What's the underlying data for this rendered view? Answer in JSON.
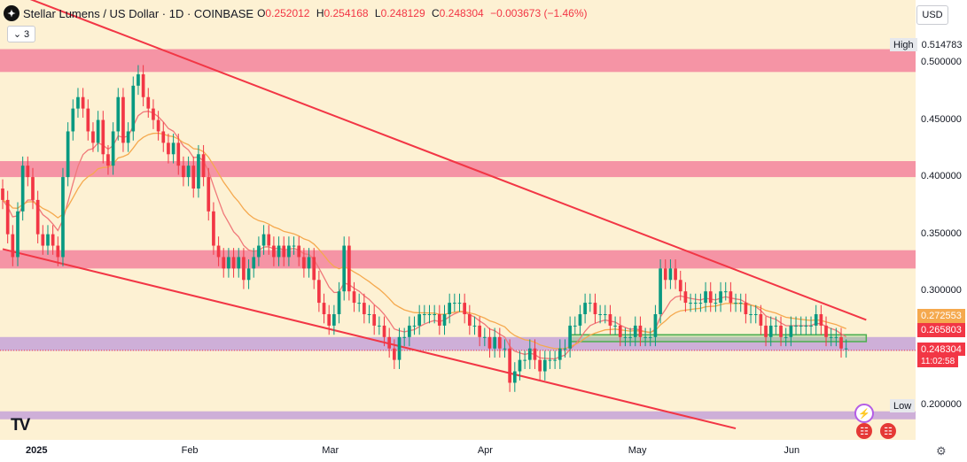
{
  "header": {
    "logo_glyph": "✦",
    "title": "Stellar Lumens / US Dollar · 1D · COINBASE",
    "ohlc": [
      {
        "label": "O",
        "value": "0.252012"
      },
      {
        "label": "H",
        "value": "0.254168"
      },
      {
        "label": "L",
        "value": "0.248129"
      },
      {
        "label": "C",
        "value": "0.248304"
      },
      {
        "label": "",
        "value": "−0.003673 (−1.46%)"
      }
    ]
  },
  "indicator_toggle": {
    "chevron": "⌄",
    "count": "3"
  },
  "currency_button": "USD",
  "watermark": "TV",
  "price_axis": {
    "high_label": "High",
    "high_value": "0.514783",
    "low_label": "Low",
    "low_value": "0.200000",
    "ema_slow_tag": "0.272553",
    "ema_fast_tag": "0.265803",
    "last_price_tag": "0.248304",
    "countdown": "11:02:58"
  },
  "colors": {
    "background": "#fdf1d3",
    "up_candle": "#089981",
    "down_candle": "#f23645",
    "resistance_zone": "#f48aa0",
    "support_zone": "#c9a7d8",
    "trendline": "#f23645",
    "ema_fast": "#f0787a",
    "ema_slow": "#f5a94e",
    "box_border": "#4caf50"
  },
  "chart_data": {
    "type": "candlestick",
    "symbol": "Stellar Lumens / US Dollar",
    "interval": "1D",
    "exchange": "COINBASE",
    "ylim": [
      0.17,
      0.555
    ],
    "y_ticks": [
      0.5,
      0.45,
      0.4,
      0.35,
      0.3,
      0.2
    ],
    "y_tick_labels": [
      "0.500000",
      "0.450000",
      "0.400000",
      "0.350000",
      "0.300000",
      "0.200000"
    ],
    "x_ticks": [
      {
        "label": "2025",
        "day": 6
      },
      {
        "label": "Feb",
        "day": 37
      },
      {
        "label": "Mar",
        "day": 65
      },
      {
        "label": "Apr",
        "day": 96
      },
      {
        "label": "May",
        "day": 126
      },
      {
        "label": "Jun",
        "day": 157
      }
    ],
    "dates_start": "2024-12-26",
    "closes": [
      0.38,
      0.35,
      0.33,
      0.37,
      0.41,
      0.4,
      0.38,
      0.35,
      0.34,
      0.35,
      0.34,
      0.33,
      0.4,
      0.44,
      0.46,
      0.47,
      0.46,
      0.44,
      0.43,
      0.45,
      0.42,
      0.41,
      0.44,
      0.47,
      0.43,
      0.44,
      0.48,
      0.49,
      0.47,
      0.46,
      0.45,
      0.44,
      0.43,
      0.42,
      0.43,
      0.41,
      0.4,
      0.41,
      0.39,
      0.42,
      0.4,
      0.37,
      0.34,
      0.33,
      0.32,
      0.33,
      0.32,
      0.33,
      0.31,
      0.32,
      0.33,
      0.34,
      0.35,
      0.34,
      0.33,
      0.34,
      0.33,
      0.34,
      0.34,
      0.33,
      0.32,
      0.33,
      0.31,
      0.29,
      0.28,
      0.27,
      0.28,
      0.3,
      0.34,
      0.3,
      0.29,
      0.29,
      0.28,
      0.28,
      0.27,
      0.27,
      0.26,
      0.25,
      0.24,
      0.26,
      0.26,
      0.27,
      0.27,
      0.28,
      0.28,
      0.28,
      0.28,
      0.27,
      0.28,
      0.29,
      0.29,
      0.29,
      0.28,
      0.27,
      0.27,
      0.26,
      0.26,
      0.25,
      0.26,
      0.25,
      0.25,
      0.22,
      0.23,
      0.24,
      0.24,
      0.25,
      0.24,
      0.23,
      0.24,
      0.24,
      0.24,
      0.25,
      0.25,
      0.27,
      0.27,
      0.28,
      0.29,
      0.29,
      0.28,
      0.28,
      0.28,
      0.27,
      0.27,
      0.26,
      0.26,
      0.26,
      0.27,
      0.26,
      0.26,
      0.26,
      0.28,
      0.32,
      0.31,
      0.32,
      0.31,
      0.3,
      0.29,
      0.29,
      0.29,
      0.29,
      0.3,
      0.29,
      0.29,
      0.3,
      0.3,
      0.29,
      0.29,
      0.29,
      0.28,
      0.28,
      0.28,
      0.27,
      0.26,
      0.27,
      0.27,
      0.26,
      0.26,
      0.27,
      0.27,
      0.27,
      0.27,
      0.27,
      0.28,
      0.27,
      0.26,
      0.26,
      0.26,
      0.25,
      0.25
    ],
    "zones": [
      {
        "type": "resistance",
        "from": 0.492,
        "to": 0.512
      },
      {
        "type": "resistance",
        "from": 0.4,
        "to": 0.414
      },
      {
        "type": "resistance",
        "from": 0.32,
        "to": 0.336
      },
      {
        "type": "support",
        "from": 0.248,
        "to": 0.26
      },
      {
        "type": "support",
        "from": 0.188,
        "to": 0.195
      }
    ],
    "trendlines": [
      {
        "from": {
          "day": 0,
          "price": 0.565
        },
        "to": {
          "day": 172,
          "price": 0.275
        }
      },
      {
        "from": {
          "day": 0,
          "price": 0.337
        },
        "to": {
          "day": 146,
          "price": 0.18
        }
      }
    ],
    "box": {
      "from_day": 113,
      "to_day": 172,
      "low": 0.256,
      "high": 0.262
    },
    "moving_averages": [
      {
        "role": "fast",
        "period": 9
      },
      {
        "role": "slow",
        "period": 21
      }
    ],
    "high": 0.514783,
    "low": 0.2,
    "last_close": 0.248304
  }
}
